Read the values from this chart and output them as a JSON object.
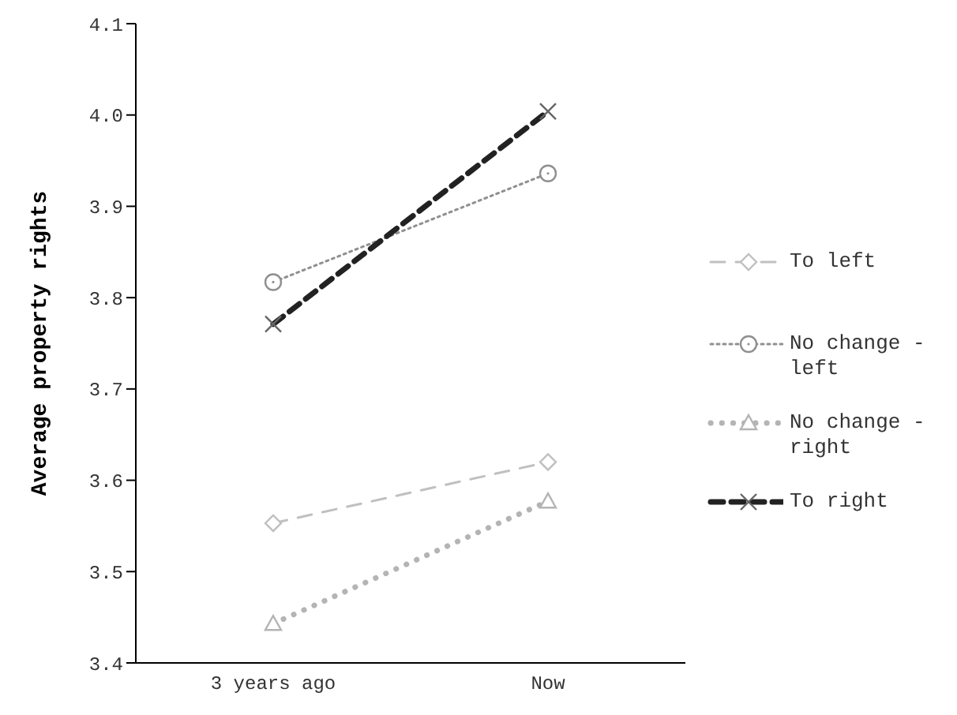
{
  "chart_data": {
    "type": "line",
    "ylabel": "Average property rights",
    "categories": [
      "3 years ago",
      "Now"
    ],
    "series": [
      {
        "name": "To left",
        "color": "#c0c0c0",
        "values": [
          3.553,
          3.62
        ],
        "marker": "diamond",
        "line_style": "dashed"
      },
      {
        "name": "No change - left",
        "color": "#909090",
        "values": [
          3.817,
          3.936
        ],
        "marker": "circle",
        "line_style": "dotted"
      },
      {
        "name": "No change - right",
        "color": "#b4b4b4",
        "values": [
          3.443,
          3.577
        ],
        "marker": "triangle",
        "line_style": "dotted"
      },
      {
        "name": "To right",
        "color": "#222222",
        "values": [
          3.771,
          4.004
        ],
        "marker": "cross",
        "line_style": "dashed"
      }
    ],
    "ylim": [
      3.4,
      4.1
    ],
    "yticks": [
      3.4,
      3.5,
      3.6,
      3.7,
      3.8,
      3.9,
      {
        "value": 4,
        "label": "4.0"
      },
      4.1
    ],
    "grid": false,
    "legend": "right"
  }
}
